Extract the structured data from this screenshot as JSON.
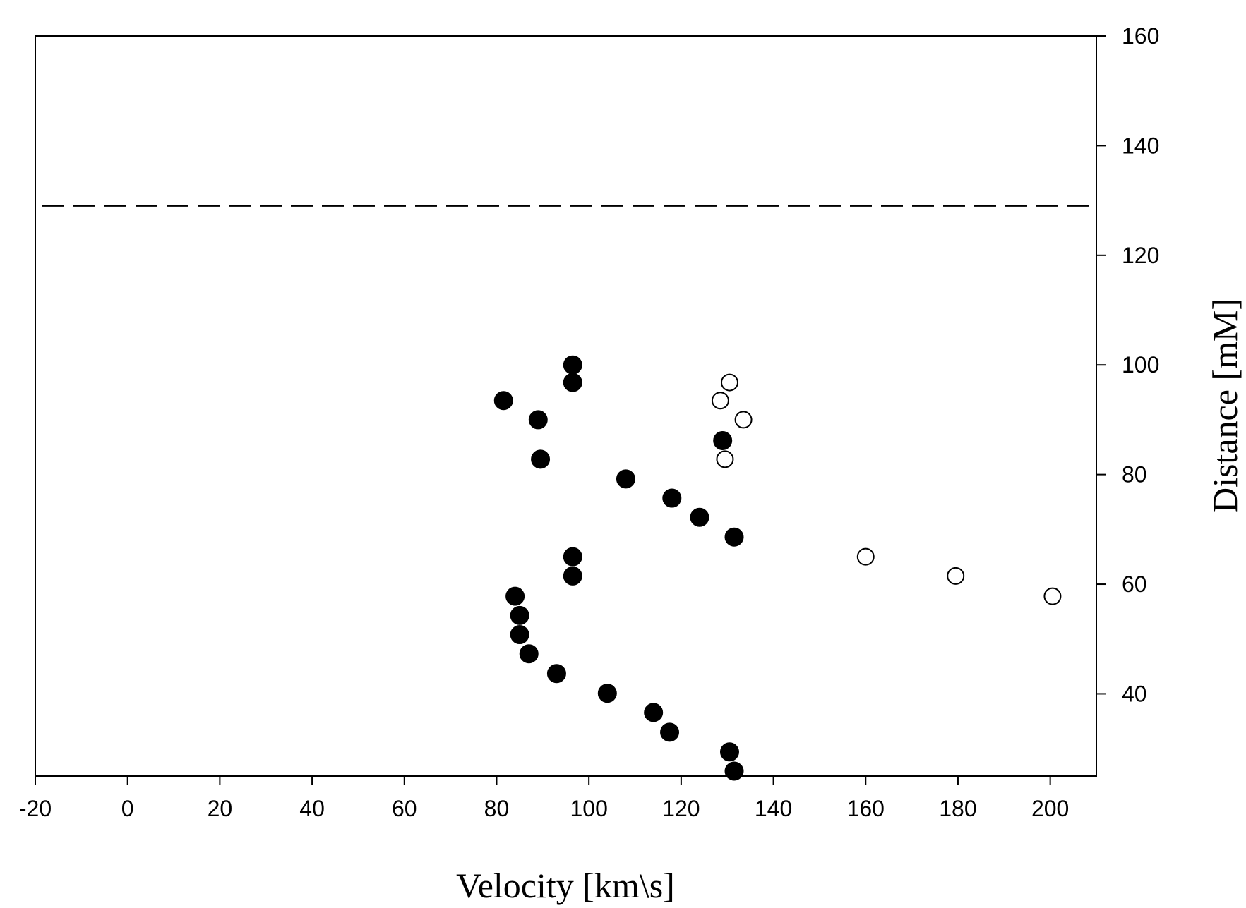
{
  "chart_data": {
    "type": "scatter",
    "title": "",
    "xlabel": "Velocity [km\\s]",
    "ylabel": "Distance [mM]",
    "xlim": [
      -20,
      210
    ],
    "ylim": [
      25,
      160
    ],
    "x_ticks": [
      -20,
      0,
      20,
      40,
      60,
      80,
      100,
      120,
      140,
      160,
      180,
      200
    ],
    "y_ticks": [
      40,
      60,
      80,
      100,
      120,
      140,
      160
    ],
    "y_axis_side": "right",
    "grid": false,
    "reference_line": {
      "axis": "y",
      "value": 129,
      "style": "dashed"
    },
    "series": [
      {
        "marker": "filled-circle",
        "color": "#000000",
        "points": [
          [
            96.5,
            100
          ],
          [
            96.5,
            96.8
          ],
          [
            81.5,
            93.5
          ],
          [
            89.0,
            90.0
          ],
          [
            129.0,
            86.2
          ],
          [
            89.5,
            82.8
          ],
          [
            108.0,
            79.2
          ],
          [
            118.0,
            75.7
          ],
          [
            124.0,
            72.2
          ],
          [
            131.5,
            68.6
          ],
          [
            96.5,
            65.0
          ],
          [
            96.5,
            61.5
          ],
          [
            84.0,
            57.8
          ],
          [
            85.0,
            54.3
          ],
          [
            85.0,
            50.8
          ],
          [
            87.0,
            47.3
          ],
          [
            93.0,
            43.7
          ],
          [
            104.0,
            40.1
          ],
          [
            114.0,
            36.6
          ],
          [
            117.5,
            33.0
          ],
          [
            130.5,
            29.4
          ],
          [
            131.5,
            25.9
          ]
        ]
      },
      {
        "marker": "open-circle",
        "color": "#000000",
        "points": [
          [
            130.5,
            96.8
          ],
          [
            128.5,
            93.5
          ],
          [
            133.5,
            90.0
          ],
          [
            129.5,
            82.8
          ],
          [
            160.0,
            65.0
          ],
          [
            179.5,
            61.5
          ],
          [
            200.5,
            57.8
          ]
        ]
      }
    ]
  }
}
